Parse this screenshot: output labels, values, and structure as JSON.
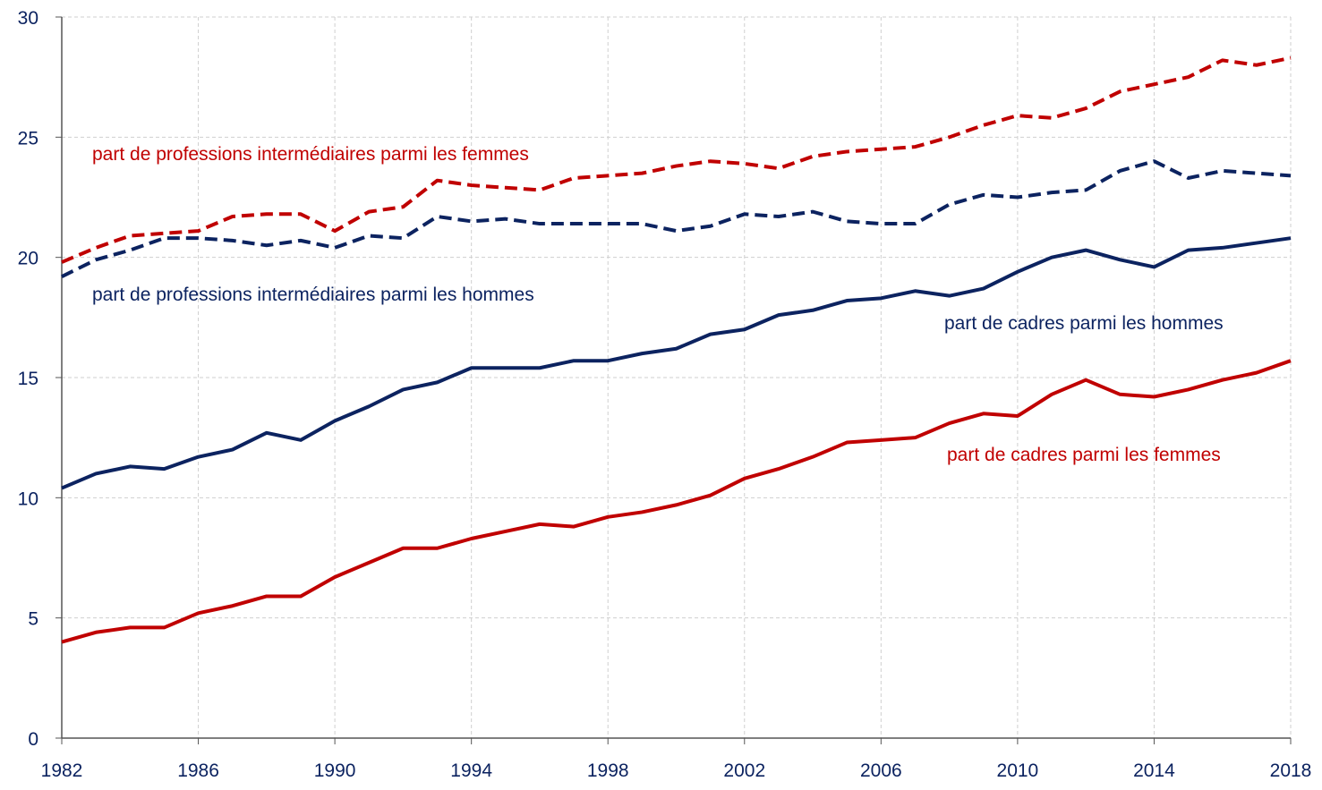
{
  "chart_data": {
    "type": "line",
    "x": [
      1982,
      1983,
      1984,
      1985,
      1986,
      1987,
      1988,
      1989,
      1990,
      1991,
      1992,
      1993,
      1994,
      1995,
      1996,
      1997,
      1998,
      1999,
      2000,
      2001,
      2002,
      2003,
      2004,
      2005,
      2006,
      2007,
      2008,
      2009,
      2010,
      2011,
      2012,
      2013,
      2014,
      2015,
      2016,
      2017,
      2018
    ],
    "series": [
      {
        "name": "part de professions intermédiaires parmi les femmes",
        "color": "#c00000",
        "dashed": true,
        "values": [
          19.8,
          20.4,
          20.9,
          21.0,
          21.1,
          21.7,
          21.8,
          21.8,
          21.1,
          21.9,
          22.1,
          23.2,
          23.0,
          22.9,
          22.8,
          23.3,
          23.4,
          23.5,
          23.8,
          24.0,
          23.9,
          23.7,
          24.2,
          24.4,
          24.5,
          24.6,
          25.0,
          25.5,
          25.9,
          25.8,
          26.2,
          26.9,
          27.2,
          27.5,
          28.2,
          28.0,
          28.3
        ]
      },
      {
        "name": "part de professions intermédiaires parmi les hommes",
        "color": "#0c2360",
        "dashed": true,
        "values": [
          19.2,
          19.9,
          20.3,
          20.8,
          20.8,
          20.7,
          20.5,
          20.7,
          20.4,
          20.9,
          20.8,
          21.7,
          21.5,
          21.6,
          21.4,
          21.4,
          21.4,
          21.4,
          21.1,
          21.3,
          21.8,
          21.7,
          21.9,
          21.5,
          21.4,
          21.4,
          22.2,
          22.6,
          22.5,
          22.7,
          22.8,
          23.6,
          24.0,
          23.3,
          23.6,
          23.5,
          23.4
        ]
      },
      {
        "name": "part de cadres parmi les hommes",
        "color": "#0c2360",
        "dashed": false,
        "values": [
          10.4,
          11.0,
          11.3,
          11.2,
          11.7,
          12.0,
          12.7,
          12.4,
          13.2,
          13.8,
          14.5,
          14.8,
          15.4,
          15.4,
          15.4,
          15.7,
          15.7,
          16.0,
          16.2,
          16.8,
          17.0,
          17.6,
          17.8,
          18.2,
          18.3,
          18.6,
          18.4,
          18.7,
          19.4,
          20.0,
          20.3,
          19.9,
          19.6,
          20.3,
          20.4,
          20.6,
          20.8
        ]
      },
      {
        "name": "part de cadres parmi les femmes",
        "color": "#c00000",
        "dashed": false,
        "values": [
          4.0,
          4.4,
          4.6,
          4.6,
          5.2,
          5.5,
          5.9,
          5.9,
          6.7,
          7.3,
          7.9,
          7.9,
          8.3,
          8.6,
          8.9,
          8.8,
          9.2,
          9.4,
          9.7,
          10.1,
          10.8,
          11.2,
          11.7,
          12.3,
          12.4,
          12.5,
          13.1,
          13.5,
          13.4,
          14.3,
          14.9,
          14.3,
          14.2,
          14.5,
          14.9,
          15.2,
          15.7
        ]
      }
    ],
    "xlim": [
      1982,
      2018
    ],
    "xticks": [
      1982,
      1986,
      1990,
      1994,
      1998,
      2002,
      2006,
      2010,
      2014,
      2018
    ],
    "ylim": [
      0,
      30
    ],
    "yticks": [
      0,
      5,
      10,
      15,
      20,
      25,
      30
    ],
    "grid": true
  }
}
